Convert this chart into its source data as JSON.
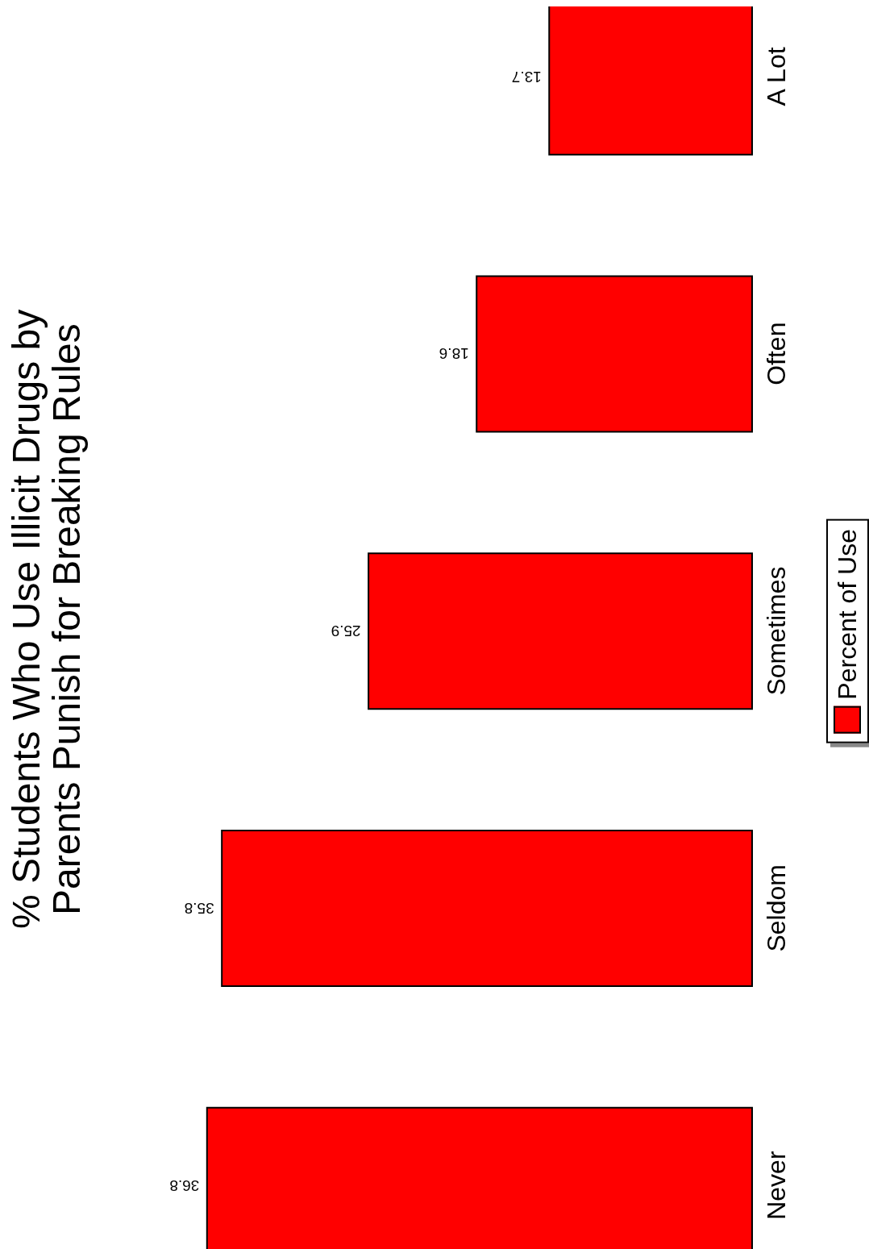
{
  "chart_data": {
    "type": "bar",
    "orientation": "horizontal",
    "title": "% Students Who Use Illicit Drugs by Parents Punish for Breaking Rules",
    "categories": [
      "A Lot",
      "Often",
      "Sometimes",
      "Seldom",
      "Never"
    ],
    "series": [
      {
        "name": "Percent of Use",
        "color": "#ff0000",
        "values": [
          13.7,
          18.6,
          25.9,
          35.8,
          36.8
        ]
      }
    ],
    "data_labels": true,
    "legend": "right",
    "tick_labels": "y"
  }
}
